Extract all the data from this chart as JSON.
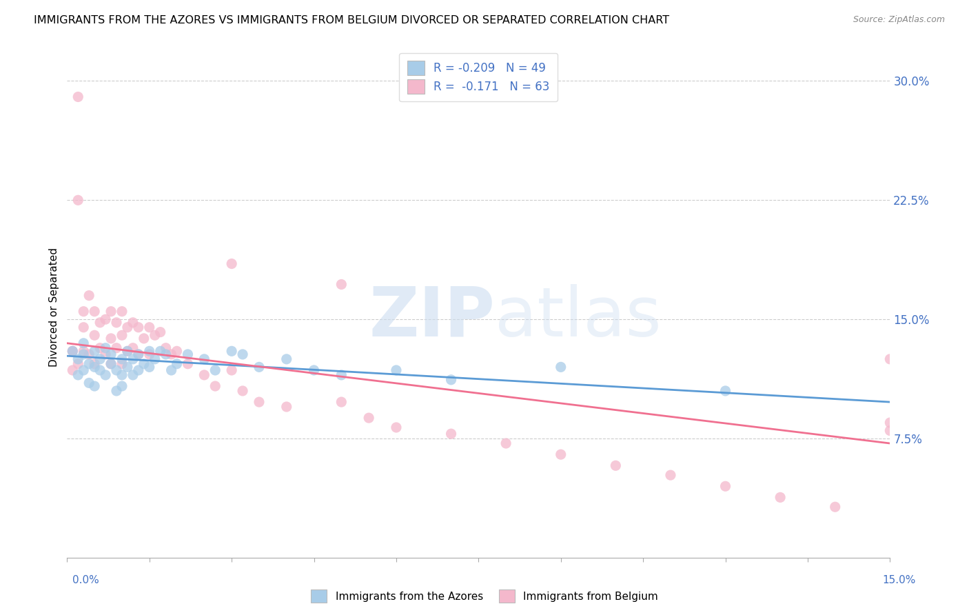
{
  "title": "IMMIGRANTS FROM THE AZORES VS IMMIGRANTS FROM BELGIUM DIVORCED OR SEPARATED CORRELATION CHART",
  "source": "Source: ZipAtlas.com",
  "ylabel": "Divorced or Separated",
  "ytick_vals": [
    0.075,
    0.15,
    0.225,
    0.3
  ],
  "xmin": 0.0,
  "xmax": 0.15,
  "ymin": 0.0,
  "ymax": 0.315,
  "color_azores": "#a8cce8",
  "color_belgium": "#f4b8cc",
  "line_color_azores": "#5b9bd5",
  "line_color_belgium": "#f07090",
  "azores_x": [
    0.001,
    0.002,
    0.002,
    0.003,
    0.003,
    0.003,
    0.004,
    0.004,
    0.005,
    0.005,
    0.005,
    0.006,
    0.006,
    0.007,
    0.007,
    0.008,
    0.008,
    0.009,
    0.009,
    0.01,
    0.01,
    0.01,
    0.011,
    0.011,
    0.012,
    0.012,
    0.013,
    0.013,
    0.014,
    0.015,
    0.015,
    0.016,
    0.017,
    0.018,
    0.019,
    0.02,
    0.022,
    0.025,
    0.027,
    0.03,
    0.032,
    0.035,
    0.04,
    0.045,
    0.05,
    0.06,
    0.07,
    0.09,
    0.12
  ],
  "azores_y": [
    0.13,
    0.125,
    0.115,
    0.128,
    0.118,
    0.135,
    0.122,
    0.11,
    0.13,
    0.12,
    0.108,
    0.125,
    0.118,
    0.132,
    0.115,
    0.128,
    0.122,
    0.118,
    0.105,
    0.125,
    0.115,
    0.108,
    0.13,
    0.12,
    0.125,
    0.115,
    0.128,
    0.118,
    0.122,
    0.13,
    0.12,
    0.125,
    0.13,
    0.128,
    0.118,
    0.122,
    0.128,
    0.125,
    0.118,
    0.13,
    0.128,
    0.12,
    0.125,
    0.118,
    0.115,
    0.118,
    0.112,
    0.12,
    0.105
  ],
  "belgium_x": [
    0.001,
    0.001,
    0.002,
    0.002,
    0.003,
    0.003,
    0.003,
    0.004,
    0.004,
    0.005,
    0.005,
    0.005,
    0.006,
    0.006,
    0.007,
    0.007,
    0.008,
    0.008,
    0.008,
    0.009,
    0.009,
    0.01,
    0.01,
    0.01,
    0.011,
    0.011,
    0.012,
    0.012,
    0.013,
    0.013,
    0.014,
    0.015,
    0.015,
    0.016,
    0.017,
    0.018,
    0.019,
    0.02,
    0.022,
    0.025,
    0.027,
    0.03,
    0.032,
    0.035,
    0.04,
    0.05,
    0.055,
    0.06,
    0.07,
    0.08,
    0.09,
    0.1,
    0.11,
    0.12,
    0.13,
    0.14,
    0.15,
    0.15,
    0.15,
    0.001,
    0.002,
    0.03,
    0.05
  ],
  "belgium_y": [
    0.13,
    0.118,
    0.29,
    0.122,
    0.155,
    0.145,
    0.13,
    0.165,
    0.128,
    0.155,
    0.14,
    0.122,
    0.148,
    0.132,
    0.15,
    0.128,
    0.155,
    0.138,
    0.122,
    0.148,
    0.132,
    0.155,
    0.14,
    0.122,
    0.145,
    0.13,
    0.148,
    0.132,
    0.145,
    0.128,
    0.138,
    0.145,
    0.128,
    0.14,
    0.142,
    0.132,
    0.128,
    0.13,
    0.122,
    0.115,
    0.108,
    0.118,
    0.105,
    0.098,
    0.095,
    0.098,
    0.088,
    0.082,
    0.078,
    0.072,
    0.065,
    0.058,
    0.052,
    0.045,
    0.038,
    0.032,
    0.08,
    0.125,
    0.085,
    0.13,
    0.225,
    0.185,
    0.172
  ],
  "azores_line_x0": 0.0,
  "azores_line_y0": 0.127,
  "azores_line_x1": 0.15,
  "azores_line_y1": 0.098,
  "belgium_line_x0": 0.0,
  "belgium_line_y0": 0.135,
  "belgium_line_x1": 0.15,
  "belgium_line_y1": 0.072
}
